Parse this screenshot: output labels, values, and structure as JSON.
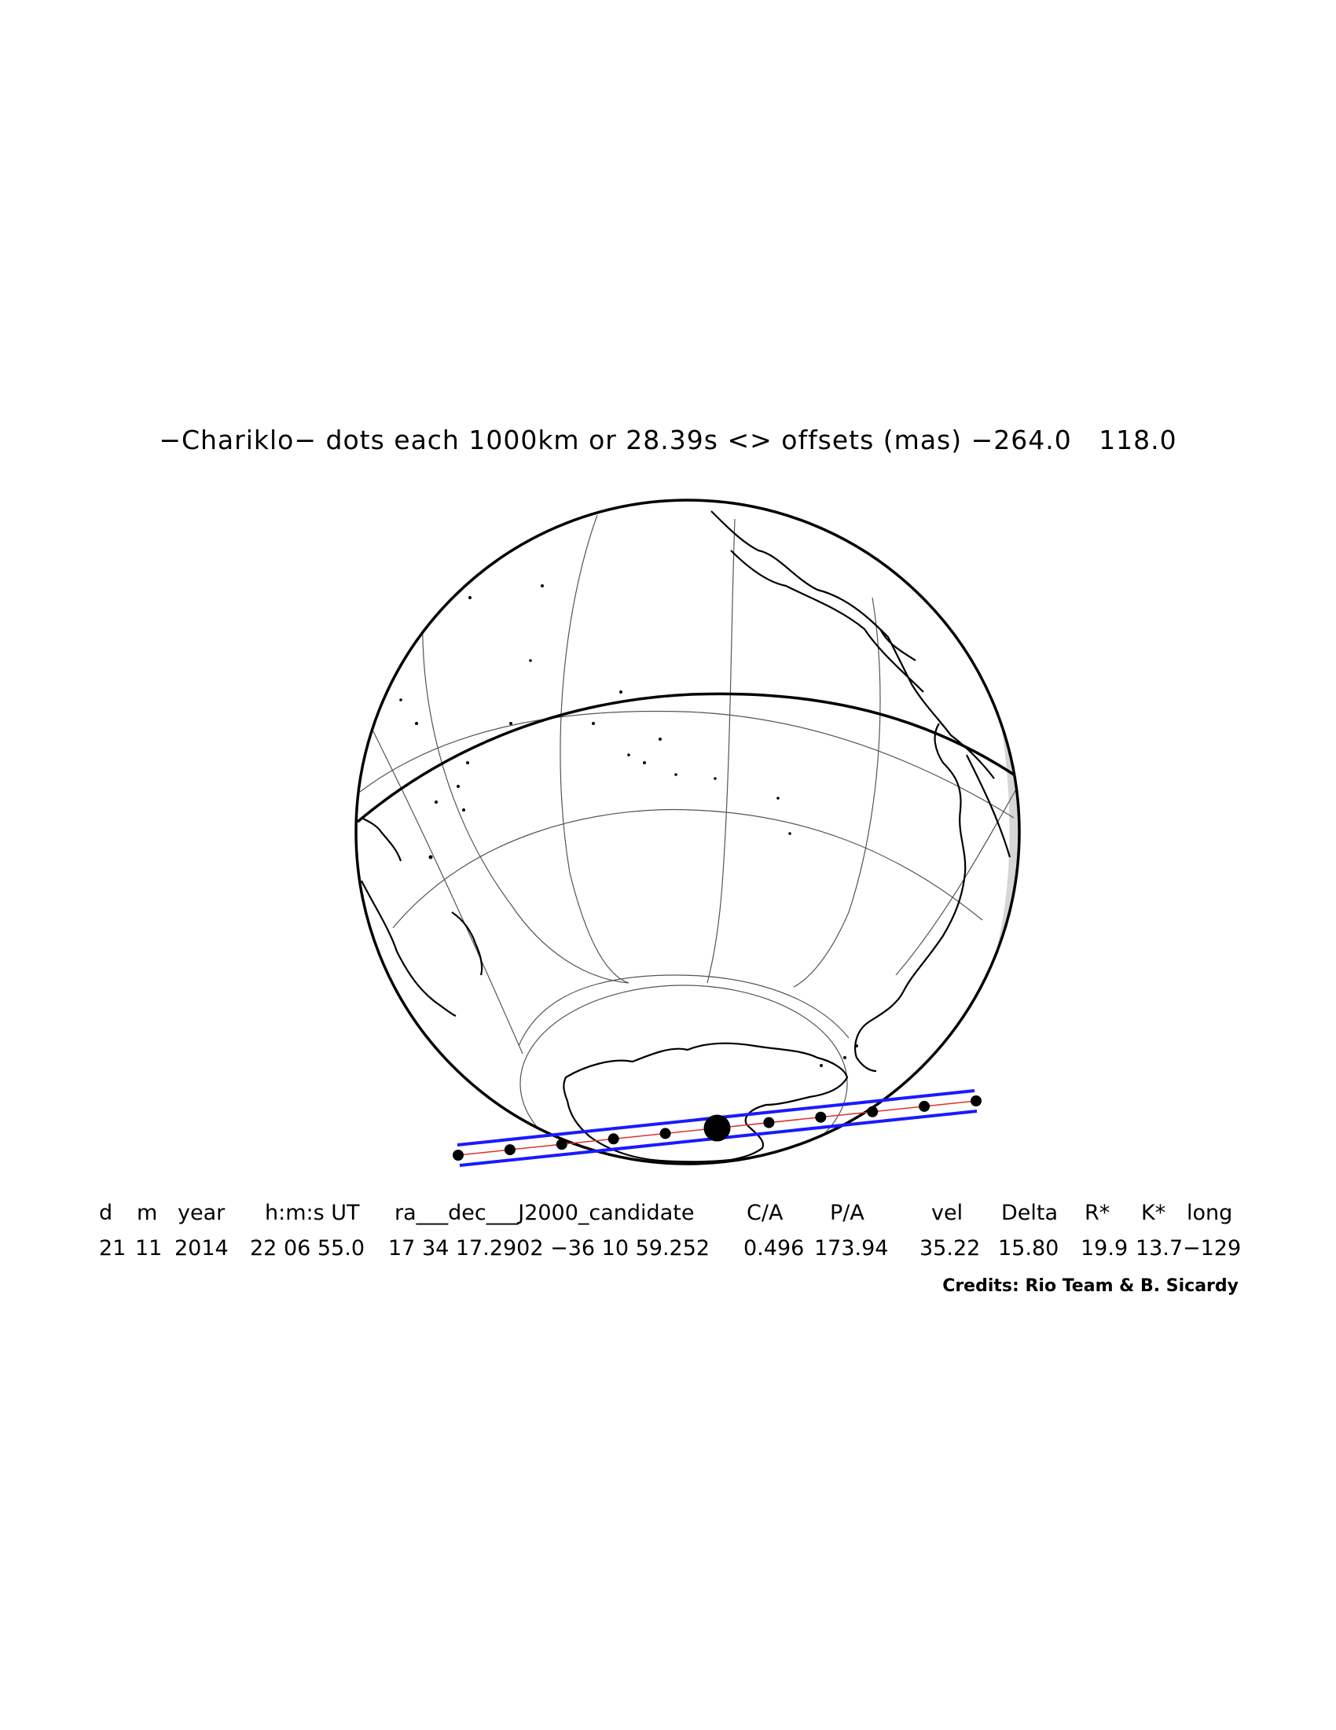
{
  "title": "−Chariklo− dots each 1000km or 28.39s <> offsets (mas) −264.0   118.0",
  "map": {
    "projection": "orthographic globe",
    "central_longitude": -129,
    "features": [
      "graticule",
      "coastlines",
      "equator",
      "antarctica",
      "night-shading"
    ],
    "occultation_path": {
      "edge_color": "#1a1aff",
      "center_color": "#e03030",
      "dot_color": "#000000",
      "dot_count": 11,
      "closest_approach_index": 5
    }
  },
  "table": {
    "headers": [
      "d",
      "m",
      "year",
      "h:m:s UT",
      "ra___dec___J2000_candidate",
      "C/A",
      "P/A",
      "vel",
      "Delta",
      "R*",
      "K*",
      "long"
    ],
    "values": [
      "21",
      "11",
      "2014",
      "22 06 55.0",
      "17 34 17.2902 −36 10 59.252",
      "0.496",
      "173.94",
      "35.22",
      "15.80",
      "19.9",
      "13.7",
      "−129"
    ]
  },
  "credits": "Credits: Rio Team & B. Sicardy"
}
